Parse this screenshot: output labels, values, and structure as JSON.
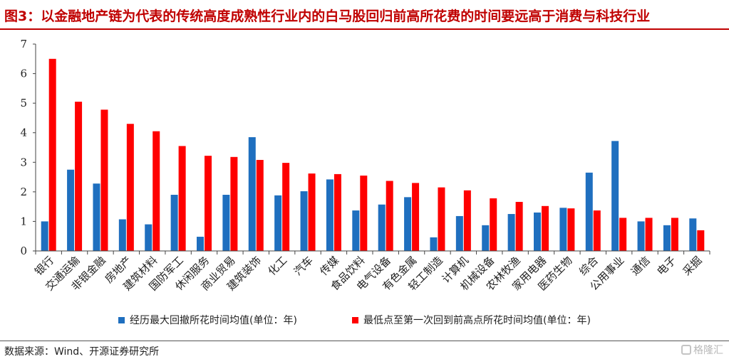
{
  "figure": {
    "title": "图3：以金融地产链为代表的传统高度成熟性行业内的白马股回归前高所花费的时间要远高于消费与科技行业",
    "source": "数据来源：Wind、开源证券研究所",
    "watermark": "格隆汇"
  },
  "colors": {
    "blue": "#1f6fbf",
    "red": "#ff0000",
    "title": "#c00000"
  },
  "chart_data": {
    "type": "bar",
    "ylim": [
      0,
      7
    ],
    "yticks": [
      0,
      1,
      2,
      3,
      4,
      5,
      6,
      7
    ],
    "grid": false,
    "legend_position": "bottom",
    "categories": [
      "银行",
      "交通运输",
      "非银金融",
      "房地产",
      "建筑材料",
      "国防军工",
      "休闲服务",
      "商业贸易",
      "建筑装饰",
      "化工",
      "汽车",
      "传媒",
      "食品饮料",
      "电气设备",
      "有色金属",
      "轻工制造",
      "计算机",
      "机械设备",
      "农林牧渔",
      "家用电器",
      "医药生物",
      "综合",
      "公用事业",
      "通信",
      "电子",
      "采掘"
    ],
    "series": [
      {
        "name": "经历最大回撤所花时间均值(单位：年)",
        "color": "#1f6fbf",
        "values": [
          1.0,
          2.75,
          2.28,
          1.07,
          0.9,
          1.9,
          0.48,
          1.9,
          3.85,
          1.88,
          2.02,
          2.42,
          1.37,
          1.57,
          1.82,
          0.46,
          1.18,
          0.87,
          1.25,
          1.3,
          1.46,
          2.65,
          3.72,
          1.0,
          0.87,
          1.1
        ]
      },
      {
        "name": "最低点至第一次回到前高点所花时间均值(单位：年)",
        "color": "#ff0000",
        "values": [
          6.5,
          5.05,
          4.78,
          4.3,
          4.05,
          3.55,
          3.22,
          3.18,
          3.08,
          2.98,
          2.62,
          2.6,
          2.55,
          2.37,
          2.3,
          2.15,
          2.05,
          1.78,
          1.66,
          1.52,
          1.44,
          1.37,
          1.12,
          1.12,
          1.12,
          0.7
        ]
      }
    ]
  }
}
